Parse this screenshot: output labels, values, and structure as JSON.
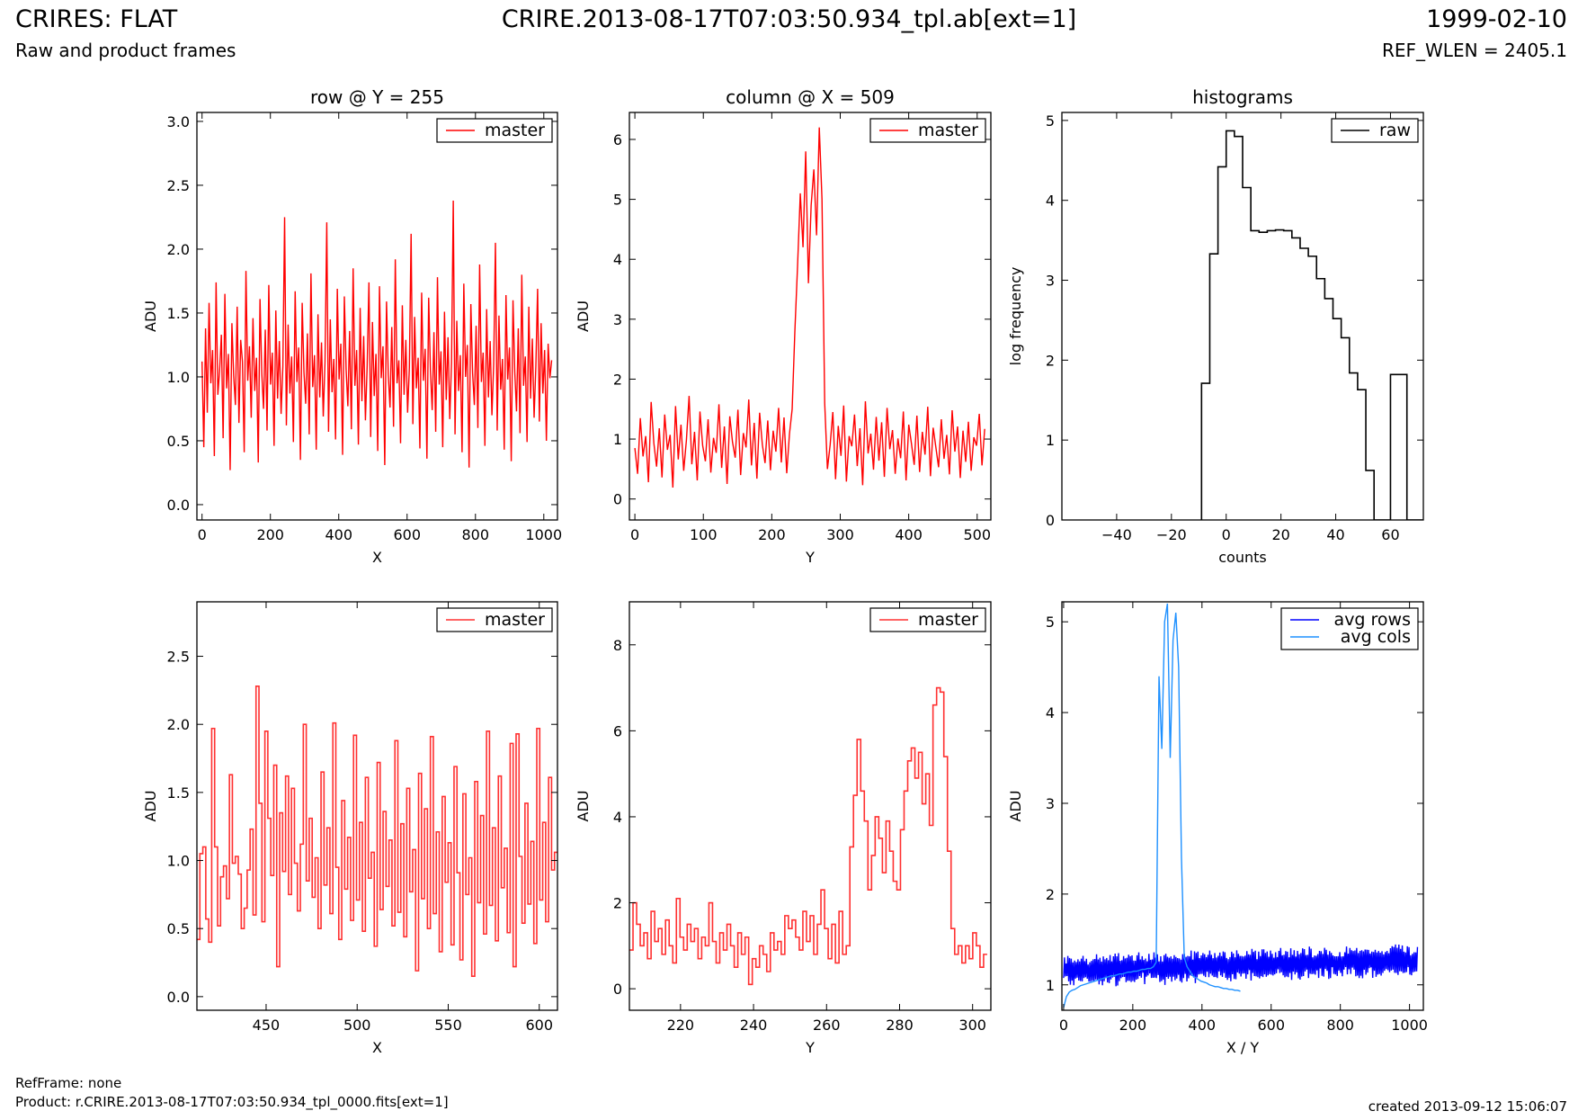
{
  "header": {
    "title_left": "CRIRES: FLAT",
    "subtitle_left": "Raw and product frames",
    "title_center": "CRIRE.2013-08-17T07:03:50.934_tpl.ab[ext=1]",
    "title_right": "1999-02-10",
    "subtitle_right": "REF_WLEN = 2405.1"
  },
  "footer": {
    "ref_frame": "RefFrame: none",
    "product": "Product: r.CRIRE.2013-08-17T07:03:50.934_tpl_0000.fits[ext=1]",
    "created": "created 2013-09-12 15:06:07"
  },
  "colors": {
    "master": "#ff0000",
    "raw": "#000000",
    "avg_rows": "#0000ff",
    "avg_cols": "#1e90ff"
  },
  "chart_data": [
    {
      "type": "line",
      "title": "row @ Y = 255",
      "xlabel": "X",
      "ylabel": "ADU",
      "xlim": [
        -15,
        1040
      ],
      "ylim": [
        -0.12,
        3.07
      ],
      "xticks": [
        0,
        200,
        400,
        600,
        800,
        1000
      ],
      "yticks": [
        0.0,
        0.5,
        1.0,
        1.5,
        2.0,
        2.5,
        3.0
      ],
      "legend": "top-right",
      "grid": false,
      "series": [
        {
          "name": "master",
          "style": "line",
          "color": "#ff0000",
          "x_range": [
            0,
            1023
          ],
          "values": [
            1.12,
            0.45,
            1.38,
            0.72,
            1.58,
            0.95,
            1.21,
            0.38,
            1.74,
            0.86,
            1.05,
            1.33,
            0.52,
            1.65,
            0.91,
            1.18,
            0.27,
            1.42,
            1.01,
            0.78,
            1.55,
            0.64,
            1.29,
            1.12,
            0.41,
            1.83,
            0.97,
            1.24,
            0.68,
            1.46,
            0.89,
            1.15,
            0.33,
            1.61,
            1.03,
            0.75,
            1.37,
            0.58,
            1.72,
            0.94,
            1.19,
            0.46,
            1.52,
            0.83,
            1.28,
            0.71,
            1.08,
            2.25,
            0.62,
            1.41,
            0.87,
            1.16,
            0.49,
            1.67,
            0.96,
            1.23,
            0.35,
            1.58,
            1.04,
            0.79,
            1.34,
            0.55,
            1.81,
            0.92,
            1.17,
            0.43,
            1.49,
            0.84,
            1.27,
            0.69,
            1.12,
            2.21,
            0.57,
            1.45,
            0.88,
            1.14,
            0.51,
            1.69,
            0.98,
            1.26,
            0.39,
            1.63,
            1.06,
            0.77,
            1.36,
            0.59,
            1.85,
            0.93,
            1.21,
            0.47,
            1.54,
            0.81,
            1.32,
            0.66,
            1.09,
            1.74,
            0.53,
            1.43,
            0.85,
            1.18,
            0.42,
            1.71,
            0.99,
            1.24,
            0.31,
            1.59,
            1.02,
            0.76,
            1.39,
            0.61,
            1.92,
            0.95,
            1.13,
            0.48,
            1.56,
            0.86,
            1.29,
            0.72,
            1.07,
            2.12,
            0.63,
            1.47,
            0.91,
            1.15,
            0.44,
            1.66,
            0.97,
            1.22,
            0.36,
            1.62,
            1.05,
            0.74,
            1.35,
            0.57,
            1.78,
            0.94,
            1.2,
            0.45,
            1.51,
            0.82,
            1.31,
            0.67,
            1.11,
            2.38,
            0.55,
            1.44,
            0.89,
            1.17,
            0.41,
            1.73,
            1.0,
            1.25,
            0.29,
            1.57,
            1.03,
            0.78,
            1.4,
            0.6,
            1.88,
            0.96,
            1.19,
            0.46,
            1.53,
            0.84,
            1.28,
            0.7,
            1.1,
            2.05,
            0.58,
            1.48,
            0.9,
            1.14,
            0.43,
            1.64,
            0.98,
            1.23,
            0.34,
            1.6,
            1.04,
            0.73,
            1.38,
            0.56,
            1.8,
            0.93,
            1.16,
            0.49,
            1.55,
            0.83,
            1.3,
            0.68,
            1.08,
            1.69,
            0.65,
            1.42,
            0.87,
            1.21,
            0.5,
            1.26,
            0.99,
            1.13
          ]
        }
      ]
    },
    {
      "type": "line",
      "title": "column @ X = 509",
      "xlabel": "Y",
      "ylabel": "ADU",
      "xlim": [
        -8,
        520
      ],
      "ylim": [
        -0.35,
        6.45
      ],
      "xticks": [
        0,
        100,
        200,
        300,
        400,
        500
      ],
      "yticks": [
        0,
        1,
        2,
        3,
        4,
        5,
        6
      ],
      "legend": "top-right",
      "grid": false,
      "series": [
        {
          "name": "master",
          "style": "line",
          "color": "#ff0000",
          "x_range": [
            0,
            511
          ],
          "values": [
            0.85,
            0.42,
            1.35,
            0.71,
            1.05,
            0.28,
            1.62,
            0.93,
            0.54,
            1.18,
            0.36,
            1.41,
            0.82,
            1.07,
            0.19,
            1.55,
            0.66,
            1.24,
            0.47,
            0.98,
            1.72,
            0.58,
            1.12,
            0.31,
            1.46,
            0.89,
            0.63,
            1.33,
            0.44,
            1.02,
            0.77,
            1.58,
            0.52,
            1.21,
            0.25,
            1.38,
            0.95,
            0.69,
            1.49,
            0.4,
            1.1,
            0.86,
            1.66,
            0.56,
            1.27,
            0.34,
            1.44,
            0.91,
            0.6,
            1.31,
            0.48,
            1.14,
            0.79,
            1.52,
            0.61,
            1.36,
            0.43,
            1.08,
            1.5,
            2.8,
            3.9,
            5.1,
            4.2,
            5.8,
            3.6,
            4.9,
            5.5,
            4.4,
            6.2,
            5.0,
            1.6,
            0.5,
            0.9,
            1.45,
            0.33,
            1.22,
            0.72,
            1.56,
            0.29,
            1.05,
            0.88,
            1.41,
            0.55,
            1.18,
            0.23,
            1.63,
            0.76,
            1.09,
            0.49,
            1.37,
            0.64,
            1.28,
            0.37,
            1.52,
            0.83,
            1.15,
            0.42,
            1.01,
            0.68,
            1.46,
            0.31,
            1.24,
            0.92,
            0.57,
            1.39,
            0.45,
            1.12,
            0.74,
            1.54,
            0.38,
            1.19,
            0.86,
            0.53,
            1.33,
            0.67,
            1.07,
            0.41,
            1.48,
            0.79,
            1.21,
            0.35,
            1.14,
            0.62,
            1.29,
            0.47,
            1.03,
            0.89,
            1.42,
            0.56,
            1.17
          ]
        }
      ]
    },
    {
      "type": "bar",
      "title": "histograms",
      "xlabel": "counts",
      "ylabel": "log frequency",
      "xlim": [
        -60,
        72
      ],
      "ylim": [
        0,
        5.1
      ],
      "xticks": [
        -40,
        -20,
        0,
        20,
        40,
        60
      ],
      "yticks": [
        0,
        1,
        2,
        3,
        4,
        5
      ],
      "legend": "top-right",
      "grid": false,
      "series": [
        {
          "name": "raw",
          "style": "steps",
          "color": "#000000",
          "bin_edges": [
            -9,
            -6,
            -3,
            0,
            3,
            6,
            9,
            12,
            15,
            18,
            21,
            24,
            27,
            30,
            33,
            36,
            39,
            42,
            45,
            48,
            51,
            54,
            57,
            60,
            63,
            66,
            69,
            72
          ],
          "values": [
            1.71,
            3.33,
            4.42,
            4.87,
            4.8,
            4.16,
            3.62,
            3.6,
            3.62,
            3.63,
            3.62,
            3.53,
            3.4,
            3.3,
            3.02,
            2.77,
            2.52,
            2.28,
            1.84,
            1.63,
            0.62,
            0.0,
            0.0,
            1.82,
            1.82,
            0.0,
            0.0
          ]
        }
      ]
    },
    {
      "type": "line",
      "title": "",
      "xlabel": "X",
      "ylabel": "ADU",
      "xlim": [
        412,
        610
      ],
      "ylim": [
        -0.1,
        2.9
      ],
      "xticks": [
        450,
        500,
        550,
        600
      ],
      "yticks": [
        0.0,
        0.5,
        1.0,
        1.5,
        2.0,
        2.5
      ],
      "legend": "top-right",
      "grid": false,
      "series": [
        {
          "name": "master",
          "style": "steps",
          "color": "#ff3030",
          "x_range": [
            412,
            610
          ],
          "values": [
            0.42,
            1.05,
            1.1,
            0.57,
            0.4,
            1.97,
            1.1,
            0.52,
            0.88,
            0.96,
            0.72,
            1.63,
            0.98,
            1.03,
            0.9,
            0.5,
            0.65,
            0.93,
            1.23,
            0.6,
            2.28,
            1.42,
            0.55,
            1.95,
            1.31,
            0.89,
            1.7,
            0.22,
            1.35,
            0.92,
            1.62,
            0.75,
            1.53,
            0.98,
            0.63,
            1.12,
            2.0,
            0.85,
            1.31,
            0.73,
            1.02,
            0.5,
            1.65,
            0.82,
            1.24,
            0.61,
            2.01,
            0.95,
            0.42,
            1.44,
            0.79,
            1.17,
            0.56,
            1.92,
            0.71,
            1.28,
            0.48,
            1.61,
            0.87,
            1.06,
            0.37,
            1.72,
            0.64,
            1.36,
            0.81,
            1.15,
            0.52,
            1.88,
            0.62,
            1.27,
            0.44,
            1.53,
            0.77,
            1.08,
            0.19,
            1.64,
            0.72,
            1.38,
            0.5,
            1.91,
            0.61,
            1.21,
            0.33,
            1.47,
            0.84,
            1.13,
            0.38,
            1.69,
            0.91,
            0.27,
            1.49,
            0.75,
            1.02,
            0.15,
            1.58,
            0.69,
            1.33,
            0.46,
            1.95,
            0.67,
            1.24,
            0.41,
            1.62,
            0.8,
            1.09,
            0.47,
            1.86,
            0.22,
            1.93,
            1.03,
            0.54,
            1.42,
            0.68,
            1.14,
            0.39,
            1.97,
            0.71,
            1.28,
            0.55,
            1.61,
            0.93,
            1.06
          ]
        }
      ]
    },
    {
      "type": "line",
      "title": "",
      "xlabel": "Y",
      "ylabel": "ADU",
      "xlim": [
        206,
        305
      ],
      "ylim": [
        -0.5,
        9.0
      ],
      "xticks": [
        220,
        240,
        260,
        280,
        300
      ],
      "yticks": [
        0,
        2,
        4,
        6,
        8
      ],
      "legend": "top-right",
      "grid": false,
      "series": [
        {
          "name": "master",
          "style": "steps",
          "color": "#ff3030",
          "x_range": [
            206,
            304
          ],
          "values": [
            0.9,
            2.0,
            1.5,
            1.0,
            1.3,
            0.7,
            1.8,
            1.1,
            1.4,
            0.8,
            1.6,
            1.0,
            0.6,
            2.1,
            1.2,
            0.9,
            1.5,
            1.1,
            1.4,
            0.7,
            1.2,
            1.0,
            2.0,
            1.1,
            0.6,
            1.3,
            0.9,
            1.5,
            1.0,
            0.5,
            1.3,
            0.8,
            1.2,
            0.1,
            0.7,
            0.5,
            1.0,
            0.8,
            0.4,
            1.3,
            0.9,
            1.1,
            0.8,
            1.7,
            1.4,
            1.6,
            1.2,
            0.9,
            1.8,
            1.1,
            1.7,
            0.8,
            1.5,
            2.3,
            1.4,
            0.7,
            1.5,
            0.6,
            1.8,
            0.8,
            1.0,
            3.3,
            4.5,
            5.8,
            4.6,
            3.9,
            2.3,
            3.1,
            4.0,
            3.5,
            2.7,
            3.9,
            3.2,
            2.5,
            2.3,
            3.7,
            4.6,
            5.3,
            5.6,
            4.9,
            5.5,
            4.3,
            5.0,
            3.8,
            6.6,
            7.0,
            6.9,
            5.4,
            3.2,
            1.4,
            0.8,
            1.0,
            0.6,
            1.0,
            0.7,
            1.3,
            1.0,
            0.5,
            0.8
          ]
        }
      ]
    },
    {
      "type": "line",
      "title": "",
      "xlabel": "X / Y",
      "ylabel": "ADU",
      "xlim": [
        -5,
        1040
      ],
      "ylim": [
        0.72,
        5.22
      ],
      "xticks": [
        0,
        200,
        400,
        600,
        800,
        1000
      ],
      "yticks": [
        1,
        2,
        3,
        4,
        5
      ],
      "legend": "top-right",
      "grid": false,
      "series": [
        {
          "name": "avg rows",
          "style": "line",
          "color": "#0000ff",
          "x_range": [
            0,
            1023
          ],
          "points": 420,
          "baseline": [
            1.15,
            1.22,
            1.27
          ],
          "amplitude": 0.12
        },
        {
          "name": "avg cols",
          "style": "line",
          "color": "#1e90ff",
          "x_range": [
            0,
            511
          ],
          "values": [
            0.75,
            0.87,
            0.92,
            0.94,
            0.95,
            0.97,
            0.99,
            1.0,
            1.01,
            1.02,
            1.03,
            1.04,
            1.05,
            1.06,
            1.07,
            1.08,
            1.09,
            1.1,
            1.1,
            1.11,
            1.12,
            1.12,
            1.13,
            1.14,
            1.14,
            1.15,
            1.15,
            1.16,
            1.17,
            1.17,
            1.18,
            1.18,
            1.2,
            1.25,
            4.4,
            3.6,
            5.0,
            5.2,
            3.5,
            4.8,
            5.1,
            4.5,
            2.4,
            1.3,
            1.2,
            1.15,
            1.1,
            1.08,
            1.06,
            1.04,
            1.03,
            1.02,
            1.0,
            0.99,
            0.98,
            0.98,
            0.97,
            0.96,
            0.96,
            0.95,
            0.95,
            0.94,
            0.94,
            0.93
          ]
        }
      ]
    }
  ]
}
